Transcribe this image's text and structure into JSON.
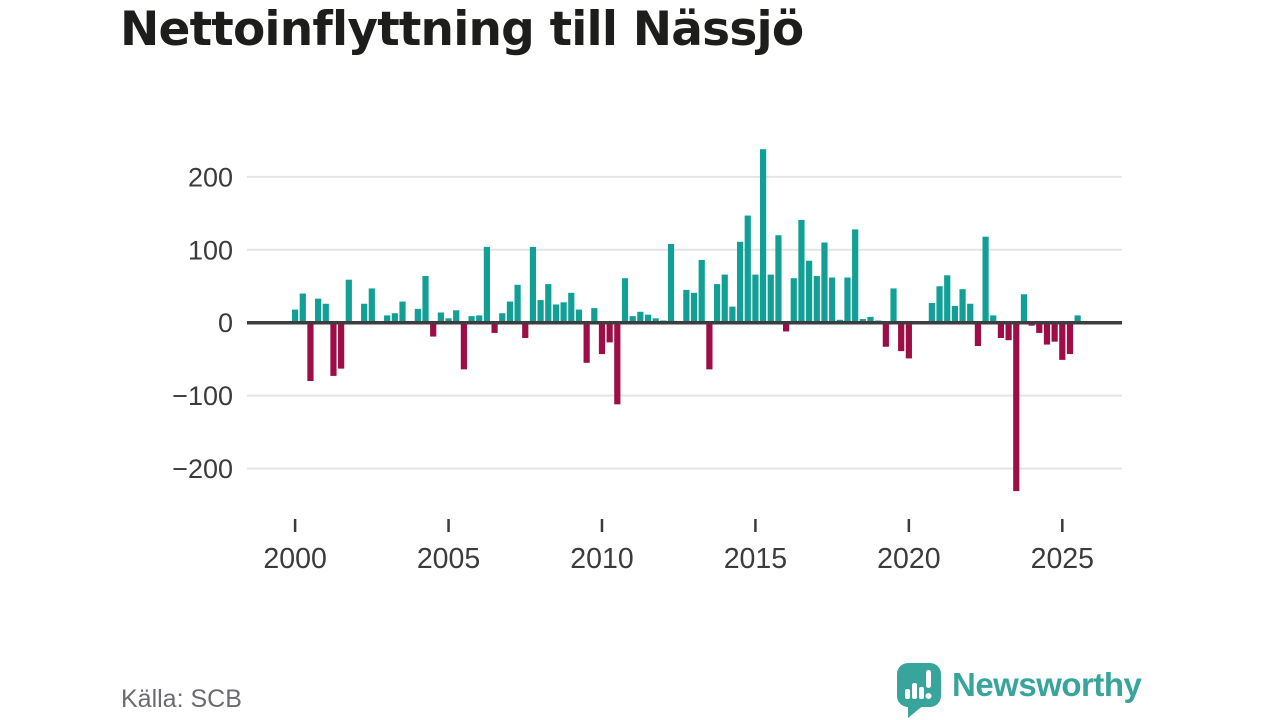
{
  "header": {
    "title": "Nettoinflyttning till Nässjö"
  },
  "footer": {
    "source": "Källa: SCB",
    "brand": "Newsworthy"
  },
  "colors": {
    "positive": "#12a096",
    "negative": "#9e0d45",
    "gridline": "#e4e4e6",
    "zero_line": "#3d3d40",
    "axis_text": "#3b3b3b",
    "title_text": "#1d1d1b",
    "source_text": "#6b6b70",
    "brand_teal": "#38a59c",
    "background": "#ffffff"
  },
  "chart_data": {
    "type": "bar",
    "title": "Nettoinflyttning till Nässjö",
    "frequency": "quarterly",
    "start_year": 2000,
    "start_quarter": 1,
    "end_year": 2025,
    "end_quarter": 3,
    "positive_color": "#12a096",
    "negative_color": "#9e0d45",
    "grid": "horizontal-only",
    "legend": "none",
    "ylim": [
      -250,
      260
    ],
    "y_ticks": [
      200,
      100,
      0,
      -100,
      -200
    ],
    "y_tick_labels": [
      "200",
      "100",
      "0",
      "−100",
      "−200"
    ],
    "x_ticks": [
      2000,
      2005,
      2010,
      2015,
      2020,
      2025
    ],
    "x_tick_labels": [
      "2000",
      "2005",
      "2010",
      "2015",
      "2020",
      "2025"
    ],
    "values": [
      18,
      40,
      -80,
      33,
      26,
      -73,
      -63,
      59,
      2,
      26,
      47,
      2,
      10,
      13,
      29,
      2,
      19,
      64,
      -19,
      14,
      6,
      17,
      -64,
      9,
      10,
      104,
      -14,
      13,
      29,
      52,
      -21,
      104,
      31,
      53,
      25,
      28,
      41,
      18,
      -55,
      20,
      -43,
      -27,
      -112,
      61,
      9,
      15,
      11,
      6,
      3,
      108,
      2,
      45,
      41,
      86,
      -64,
      53,
      66,
      22,
      111,
      147,
      66,
      238,
      66,
      120,
      -12,
      61,
      141,
      85,
      64,
      110,
      62,
      4,
      62,
      128,
      5,
      8,
      3,
      -33,
      47,
      -39,
      -49,
      0,
      2,
      27,
      50,
      65,
      23,
      46,
      26,
      -32,
      118,
      10,
      -21,
      -24,
      -231,
      39,
      -4,
      -14,
      -30,
      -26,
      -51,
      -43,
      10
    ]
  }
}
